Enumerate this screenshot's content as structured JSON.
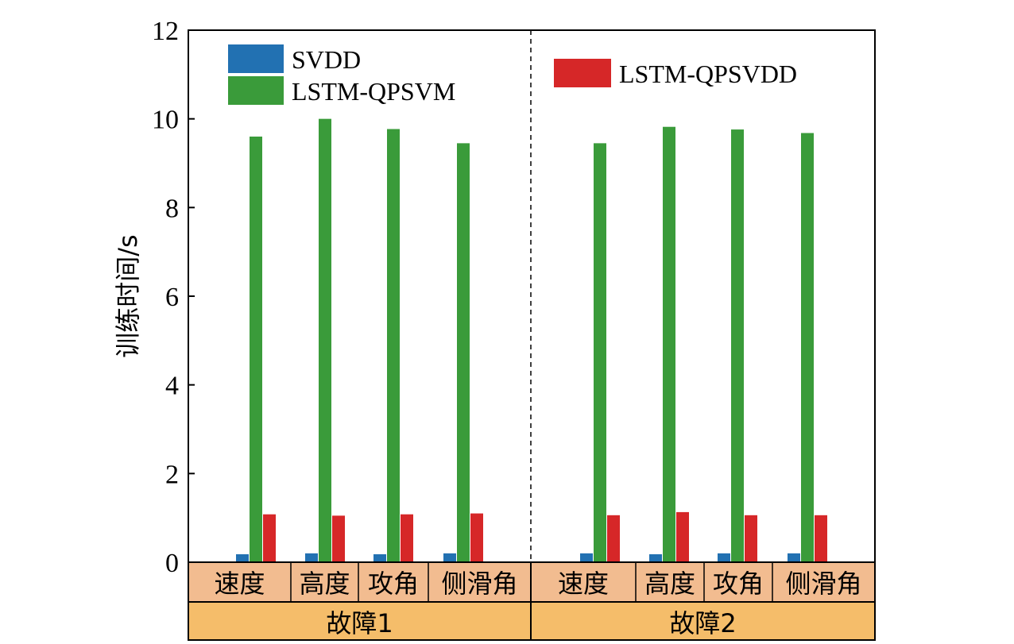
{
  "chart_data": {
    "type": "bar",
    "ylabel": "训练时间/s",
    "ylim": [
      0,
      12
    ],
    "yticks": [
      0,
      2,
      4,
      6,
      8,
      10,
      12
    ],
    "categories": [
      "速度",
      "高度",
      "攻角",
      "侧滑角",
      "速度",
      "高度",
      "攻角",
      "侧滑角"
    ],
    "groups": [
      {
        "label": "故障1",
        "categories": [
          "速度",
          "高度",
          "攻角",
          "侧滑角"
        ]
      },
      {
        "label": "故障2",
        "categories": [
          "速度",
          "高度",
          "攻角",
          "侧滑角"
        ]
      }
    ],
    "series": [
      {
        "name": "SVDD",
        "color": "#2271b2",
        "values": [
          0.18,
          0.2,
          0.18,
          0.2,
          0.2,
          0.18,
          0.2,
          0.2
        ]
      },
      {
        "name": "LSTM-QPSVM",
        "color": "#3a9b3a",
        "values": [
          9.6,
          10.0,
          9.77,
          9.45,
          9.45,
          9.82,
          9.76,
          9.68
        ]
      },
      {
        "name": "LSTM-QPSVDD",
        "color": "#d62728",
        "values": [
          1.08,
          1.05,
          1.08,
          1.1,
          1.06,
          1.13,
          1.06,
          1.06
        ]
      }
    ],
    "legend": {
      "left": [
        "SVDD",
        "LSTM-QPSVM"
      ],
      "right": [
        "LSTM-QPSVDD"
      ]
    },
    "category_band_color": "#f2bc90",
    "group_band_color": "#f5bd6a"
  }
}
